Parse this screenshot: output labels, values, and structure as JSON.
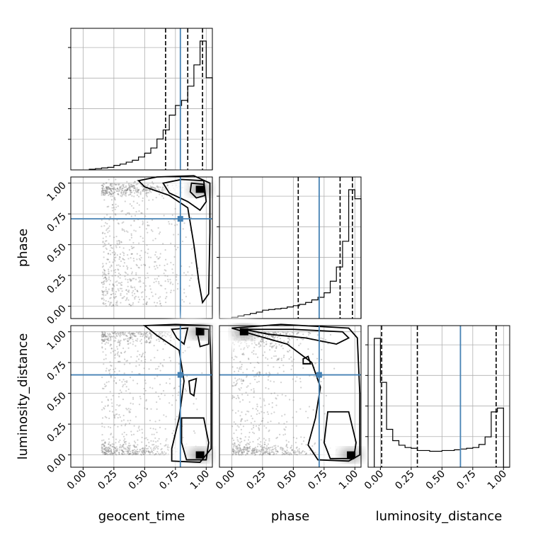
{
  "chart_data": {
    "type": "corner",
    "title": "",
    "parameters": [
      "geocent_time",
      "phase",
      "luminosity_distance"
    ],
    "axis_range": [
      -0.1,
      1.05
    ],
    "ticks": [
      0.0,
      0.25,
      0.5,
      0.75,
      1.0
    ],
    "tick_labels": [
      "0.00",
      "0.25",
      "0.50",
      "0.75",
      "1.00"
    ],
    "grid": true,
    "truth_color": "#4682b4",
    "truths": {
      "geocent_time": 0.79,
      "phase": 0.71,
      "luminosity_distance": 0.65
    },
    "quantiles": {
      "geocent_time": [
        0.67,
        0.85,
        0.97
      ],
      "phase": [
        0.54,
        0.88,
        0.98
      ],
      "luminosity_distance": [
        0.01,
        0.3,
        0.94
      ]
    },
    "histograms": {
      "geocent_time": {
        "edges": [
          0.05,
          0.1,
          0.15,
          0.2,
          0.25,
          0.3,
          0.35,
          0.4,
          0.45,
          0.5,
          0.55,
          0.6,
          0.65,
          0.7,
          0.75,
          0.8,
          0.85,
          0.9,
          0.95,
          1.0,
          1.05
        ],
        "counts": [
          1,
          2,
          3,
          4,
          7,
          9,
          12,
          15,
          20,
          26,
          34,
          48,
          62,
          85,
          100,
          108,
          130,
          163,
          200,
          143
        ]
      },
      "phase": {
        "edges": [
          0.0,
          0.05,
          0.1,
          0.15,
          0.2,
          0.25,
          0.3,
          0.35,
          0.4,
          0.45,
          0.5,
          0.55,
          0.6,
          0.65,
          0.7,
          0.75,
          0.8,
          0.85,
          0.9,
          0.95,
          1.0,
          1.05
        ],
        "counts": [
          2,
          4,
          6,
          8,
          10,
          13,
          14,
          15,
          16,
          18,
          20,
          22,
          25,
          29,
          33,
          40,
          58,
          80,
          120,
          200,
          186
        ]
      },
      "luminosity_distance": {
        "edges": [
          -0.05,
          0.0,
          0.05,
          0.1,
          0.15,
          0.2,
          0.25,
          0.3,
          0.35,
          0.4,
          0.45,
          0.5,
          0.55,
          0.6,
          0.65,
          0.7,
          0.75,
          0.8,
          0.85,
          0.9,
          0.95,
          1.0,
          1.05
        ],
        "counts": [
          170,
          112,
          50,
          35,
          29,
          26,
          25,
          22,
          22,
          21,
          21,
          22,
          22,
          23,
          24,
          25,
          26,
          30,
          40,
          73,
          78,
          0
        ]
      }
    },
    "density_modes": {
      "geocent_time|phase": [
        [
          0.95,
          0.95
        ]
      ],
      "geocent_time|luminosity_distance": [
        [
          0.95,
          0.0
        ],
        [
          0.95,
          1.0
        ]
      ],
      "phase|luminosity_distance": [
        [
          0.97,
          0.0
        ],
        [
          0.1,
          1.0
        ]
      ]
    }
  }
}
